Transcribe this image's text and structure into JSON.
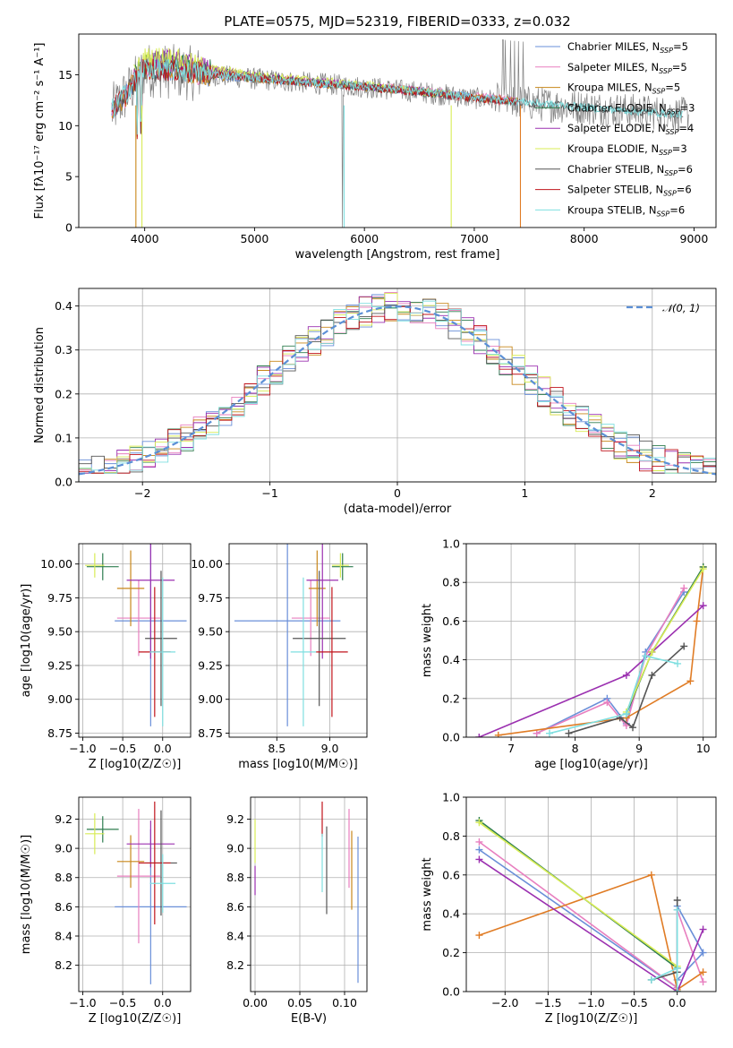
{
  "colors": {
    "Chabrier MILES": "#6a8fd8",
    "Salpeter MILES": "#e87fbf",
    "Kroupa MILES": "#c8871a",
    "Chabrier ELODIE": "#2e7d4f",
    "Salpeter ELODIE": "#9b30b0",
    "Kroupa ELODIE": "#d8ec55",
    "Chabrier STELIB": "#555555",
    "Salpeter STELIB": "#c0141c",
    "Kroupa STELIB": "#7fdfe0",
    "Salpeter STELIB alt": "#e07c25",
    "normal": "#5b8fd6",
    "data_spectrum": "#808080"
  },
  "chart_data": [
    {
      "id": "spectrum",
      "type": "line",
      "title": "PLATE=0575, MJD=52319, FIBERID=0333, z=0.032",
      "xlabel": "wavelength [Angstrom, rest frame]",
      "ylabel": "Flux [fλ10⁻¹⁷ erg cm⁻² s⁻¹ A⁻¹]",
      "xlim": [
        3400,
        9200
      ],
      "ylim": [
        0,
        19
      ],
      "xticks": [
        4000,
        5000,
        6000,
        7000,
        8000,
        9000
      ],
      "yticks": [
        0,
        5,
        10,
        15
      ],
      "grid": false,
      "legend_position": "top-right",
      "legend": [
        {
          "name": "Chabrier MILES",
          "sub": "SSP",
          "n": "5"
        },
        {
          "name": "Salpeter MILES",
          "sub": "SSP",
          "n": "5"
        },
        {
          "name": "Kroupa MILES",
          "sub": "SSP",
          "n": "5"
        },
        {
          "name": "Chabrier ELODIE",
          "sub": "SSP",
          "n": "3"
        },
        {
          "name": "Salpeter ELODIE",
          "sub": "SSP",
          "n": "4"
        },
        {
          "name": "Kroupa ELODIE",
          "sub": "SSP",
          "n": "3"
        },
        {
          "name": "Chabrier STELIB",
          "sub": "SSP",
          "n": "6"
        },
        {
          "name": "Salpeter STELIB",
          "sub": "SSP",
          "n": "6"
        },
        {
          "name": "Kroupa STELIB",
          "sub": "SSP",
          "n": "6"
        }
      ],
      "series": [
        {
          "name": "Chabrier MILES",
          "x": [
            3700,
            3800,
            3900,
            4000,
            4200,
            4500,
            5000,
            5500,
            6000,
            6500,
            7000,
            7400
          ],
          "y": [
            11.5,
            12.2,
            14.5,
            15.8,
            15.6,
            15.0,
            14.6,
            14.2,
            13.9,
            13.4,
            12.8,
            12.4
          ]
        },
        {
          "name": "Salpeter MILES",
          "x": [
            3700,
            3800,
            3900,
            4000,
            4200,
            4500,
            5000,
            5500,
            6000,
            6500,
            7000,
            7400
          ],
          "y": [
            11.6,
            12.3,
            14.6,
            15.9,
            15.7,
            15.1,
            14.7,
            14.3,
            13.9,
            13.5,
            12.9,
            12.5
          ]
        },
        {
          "name": "Kroupa MILES",
          "x": [
            3700,
            3800,
            3900,
            4000,
            4200,
            4500,
            5000,
            5500,
            6000,
            6500,
            7000,
            7400
          ],
          "y": [
            11.5,
            12.1,
            14.4,
            15.7,
            15.6,
            15.0,
            14.6,
            14.2,
            13.8,
            13.4,
            12.8,
            12.4
          ]
        },
        {
          "name": "Chabrier ELODIE",
          "x": [
            3900,
            4000,
            4200,
            4500,
            5000,
            5500,
            6000,
            6500,
            6800
          ],
          "y": [
            14.8,
            16.0,
            16.3,
            15.6,
            14.8,
            14.3,
            13.8,
            13.3,
            12.9
          ]
        },
        {
          "name": "Salpeter ELODIE",
          "x": [
            3900,
            4000,
            4200,
            4500,
            5000,
            5500,
            6000,
            6500,
            6800
          ],
          "y": [
            14.9,
            16.2,
            16.5,
            15.7,
            14.9,
            14.4,
            13.9,
            13.4,
            13.0
          ]
        },
        {
          "name": "Kroupa ELODIE",
          "x": [
            3900,
            4000,
            4200,
            4500,
            5000,
            5500,
            6000,
            6500,
            6800
          ],
          "y": [
            15.0,
            16.6,
            16.8,
            15.8,
            15.0,
            14.5,
            14.0,
            13.4,
            13.0
          ]
        },
        {
          "name": "Chabrier STELIB",
          "x": [
            3700,
            3900,
            4000,
            4500,
            5000,
            5500,
            6000,
            6500,
            7000,
            7500,
            8000,
            8500,
            8900
          ],
          "y": [
            11.4,
            14.0,
            15.5,
            15.1,
            14.6,
            14.2,
            13.8,
            13.3,
            12.7,
            12.2,
            11.8,
            11.4,
            11.1
          ]
        },
        {
          "name": "Salpeter STELIB",
          "x": [
            3700,
            3900,
            4000,
            4500,
            5000,
            5500,
            6000,
            6500,
            7000,
            7400
          ],
          "y": [
            11.5,
            14.1,
            15.6,
            15.2,
            14.7,
            14.2,
            13.8,
            13.3,
            12.7,
            12.3
          ]
        },
        {
          "name": "Kroupa STELIB",
          "x": [
            3700,
            3900,
            4000,
            4500,
            5000,
            5500,
            6000,
            6500,
            7000,
            7500,
            8000,
            8500,
            8900
          ],
          "y": [
            11.5,
            14.2,
            15.7,
            15.2,
            14.7,
            14.2,
            13.9,
            13.4,
            12.8,
            12.3,
            11.8,
            11.4,
            11.1
          ]
        }
      ]
    },
    {
      "id": "residuals",
      "type": "line",
      "xlabel": "(data-model)/error",
      "ylabel": "Normed distribution",
      "xlim": [
        -2.5,
        2.5
      ],
      "ylim": [
        0,
        0.44
      ],
      "xticks": [
        -2,
        -1,
        0,
        1,
        2
      ],
      "yticks": [
        0.0,
        0.1,
        0.2,
        0.3,
        0.4
      ],
      "grid": true,
      "legend_position": "top-right",
      "legend": [
        {
          "name": "𝒩(0, 1)"
        }
      ],
      "bin_edges_range": [
        -2.5,
        2.5
      ],
      "bin_count": 50
    },
    {
      "id": "age-vs-z",
      "type": "scatter",
      "xlabel": "Z [log10(Z/Z☉)]",
      "ylabel": "age  [log10(age/yr)]",
      "xlim": [
        -1.05,
        0.35
      ],
      "ylim": [
        8.72,
        10.15
      ],
      "xticks": [
        -1.0,
        -0.5,
        0.0
      ],
      "yticks": [
        8.75,
        9.0,
        9.25,
        9.5,
        9.75,
        10.0
      ],
      "grid": true,
      "points": [
        {
          "series": "Chabrier MILES",
          "x": -0.15,
          "xerr": 0.45,
          "y": 9.58,
          "yerr": 0.78
        },
        {
          "series": "Salpeter MILES",
          "x": -0.3,
          "xerr": 0.27,
          "y": 9.6,
          "yerr": 0.28
        },
        {
          "series": "Kroupa MILES",
          "x": -0.4,
          "xerr": 0.17,
          "y": 9.82,
          "yerr": 0.28
        },
        {
          "series": "Chabrier ELODIE",
          "x": -0.75,
          "xerr": 0.2,
          "y": 9.98,
          "yerr": 0.1
        },
        {
          "series": "Salpeter ELODIE",
          "x": -0.15,
          "xerr": 0.3,
          "y": 9.88,
          "yerr": 0.58
        },
        {
          "series": "Kroupa ELODIE",
          "x": -0.85,
          "xerr": 0.12,
          "y": 9.99,
          "yerr": 0.09
        },
        {
          "series": "Chabrier STELIB",
          "x": -0.02,
          "xerr": 0.2,
          "y": 9.45,
          "yerr": 0.5
        },
        {
          "series": "Salpeter STELIB",
          "x": -0.1,
          "xerr": 0.2,
          "y": 9.35,
          "yerr": 0.48
        },
        {
          "series": "Kroupa STELIB",
          "x": 0.0,
          "xerr": 0.16,
          "y": 9.35,
          "yerr": 0.55
        }
      ]
    },
    {
      "id": "age-vs-mass",
      "type": "scatter",
      "xlabel": "mass [log10(M/M☉)]",
      "xlim": [
        8.05,
        9.35
      ],
      "ylim": [
        8.72,
        10.15
      ],
      "xticks": [
        8.5,
        9.0
      ],
      "yticks": [
        8.75,
        9.0,
        9.25,
        9.5,
        9.75,
        10.0
      ],
      "grid": true,
      "points": [
        {
          "series": "Chabrier MILES",
          "x": 8.6,
          "xerr": 0.5,
          "y": 9.58,
          "yerr": 0.78
        },
        {
          "series": "Salpeter MILES",
          "x": 8.82,
          "xerr": 0.18,
          "y": 9.6,
          "yerr": 0.28
        },
        {
          "series": "Kroupa MILES",
          "x": 8.88,
          "xerr": 0.08,
          "y": 9.82,
          "yerr": 0.28
        },
        {
          "series": "Chabrier ELODIE",
          "x": 9.12,
          "xerr": 0.1,
          "y": 9.98,
          "yerr": 0.1
        },
        {
          "series": "Salpeter ELODIE",
          "x": 8.93,
          "xerr": 0.15,
          "y": 9.88,
          "yerr": 0.58
        },
        {
          "series": "Kroupa ELODIE",
          "x": 9.1,
          "xerr": 0.08,
          "y": 9.99,
          "yerr": 0.09
        },
        {
          "series": "Chabrier STELIB",
          "x": 8.9,
          "xerr": 0.25,
          "y": 9.45,
          "yerr": 0.5
        },
        {
          "series": "Salpeter STELIB",
          "x": 9.02,
          "xerr": 0.15,
          "y": 9.35,
          "yerr": 0.48
        },
        {
          "series": "Kroupa STELIB",
          "x": 8.75,
          "xerr": 0.12,
          "y": 9.35,
          "yerr": 0.55
        }
      ]
    },
    {
      "id": "weight-vs-age",
      "type": "line",
      "xlabel": "age  [log10(age/yr)]",
      "ylabel": "mass weight",
      "xlim": [
        6.3,
        10.2
      ],
      "ylim": [
        0,
        1
      ],
      "xticks": [
        7,
        8,
        9,
        10
      ],
      "yticks": [
        0.0,
        0.2,
        0.4,
        0.6,
        0.8,
        1.0
      ],
      "grid": true,
      "series": [
        {
          "name": "Chabrier MILES",
          "x": [
            7.4,
            8.5,
            8.8,
            9.1,
            9.7
          ],
          "y": [
            0.02,
            0.2,
            0.07,
            0.44,
            0.75
          ]
        },
        {
          "name": "Salpeter MILES",
          "x": [
            7.4,
            8.5,
            8.8,
            9.1,
            9.7
          ],
          "y": [
            0.02,
            0.18,
            0.06,
            0.42,
            0.77
          ]
        },
        {
          "name": "Salpeter STELIB alt",
          "x": [
            6.8,
            8.8,
            9.8,
            9.9,
            10.0
          ],
          "y": [
            0.01,
            0.1,
            0.29,
            0.6,
            0.88
          ]
        },
        {
          "name": "Chabrier ELODIE",
          "x": [
            8.8,
            9.2,
            10.0
          ],
          "y": [
            0.12,
            0.44,
            0.88
          ]
        },
        {
          "name": "Salpeter ELODIE",
          "x": [
            6.5,
            8.8,
            9.2,
            10.0
          ],
          "y": [
            0.0,
            0.32,
            0.44,
            0.68
          ]
        },
        {
          "name": "Kroupa ELODIE",
          "x": [
            8.8,
            9.2,
            10.0
          ],
          "y": [
            0.13,
            0.44,
            0.87
          ]
        },
        {
          "name": "Chabrier STELIB",
          "x": [
            7.9,
            8.7,
            8.9,
            9.2,
            9.7
          ],
          "y": [
            0.02,
            0.1,
            0.05,
            0.32,
            0.47
          ]
        },
        {
          "name": "Kroupa STELIB",
          "x": [
            7.6,
            8.8,
            9.1,
            9.6
          ],
          "y": [
            0.02,
            0.12,
            0.42,
            0.38
          ]
        }
      ]
    },
    {
      "id": "mass-vs-z",
      "type": "scatter",
      "xlabel": "Z [log10(Z/Z☉)]",
      "ylabel": "mass [log10(M/M☉)]",
      "xlim": [
        -1.05,
        0.35
      ],
      "ylim": [
        8.02,
        9.35
      ],
      "xticks": [
        -1.0,
        -0.5,
        0.0
      ],
      "yticks": [
        8.2,
        8.4,
        8.6,
        8.8,
        9.0,
        9.2
      ],
      "grid": true,
      "points": [
        {
          "series": "Chabrier MILES",
          "x": -0.15,
          "xerr": 0.45,
          "y": 8.6,
          "yerr": 0.53
        },
        {
          "series": "Salpeter MILES",
          "x": -0.3,
          "xerr": 0.27,
          "y": 8.81,
          "yerr": 0.46
        },
        {
          "series": "Kroupa MILES",
          "x": -0.4,
          "xerr": 0.17,
          "y": 8.91,
          "yerr": 0.18
        },
        {
          "series": "Chabrier ELODIE",
          "x": -0.75,
          "xerr": 0.2,
          "y": 9.13,
          "yerr": 0.09
        },
        {
          "series": "Salpeter ELODIE",
          "x": -0.15,
          "xerr": 0.3,
          "y": 9.03,
          "yerr": 0.16
        },
        {
          "series": "Kroupa ELODIE",
          "x": -0.85,
          "xerr": 0.12,
          "y": 9.1,
          "yerr": 0.14
        },
        {
          "series": "Chabrier STELIB",
          "x": -0.02,
          "xerr": 0.2,
          "y": 8.9,
          "yerr": 0.36
        },
        {
          "series": "Salpeter STELIB",
          "x": -0.1,
          "xerr": 0.2,
          "y": 8.9,
          "yerr": 0.42
        },
        {
          "series": "Kroupa STELIB",
          "x": 0.0,
          "xerr": 0.16,
          "y": 8.76,
          "yerr": 0.2
        }
      ]
    },
    {
      "id": "mass-vs-ebv",
      "type": "scatter",
      "xlabel": "E(B-V)",
      "xlim": [
        -0.005,
        0.125
      ],
      "ylim": [
        8.02,
        9.35
      ],
      "xticks": [
        0.0,
        0.05,
        0.1
      ],
      "yticks": [
        8.2,
        8.4,
        8.6,
        8.8,
        9.0,
        9.2
      ],
      "grid": true,
      "points": [
        {
          "series": "Chabrier MILES",
          "x": 0.115,
          "y": 8.58,
          "yerr": 0.5
        },
        {
          "series": "Salpeter MILES",
          "x": 0.105,
          "y": 9.0,
          "yerr": 0.27
        },
        {
          "series": "Kroupa MILES",
          "x": 0.108,
          "y": 8.85,
          "yerr": 0.27
        },
        {
          "series": "Salpeter ELODIE",
          "x": 0.0,
          "y": 8.78,
          "yerr": 0.1
        },
        {
          "series": "Kroupa ELODIE",
          "x": 0.0,
          "y": 9.05,
          "yerr": 0.15
        },
        {
          "series": "Chabrier STELIB",
          "x": 0.08,
          "y": 8.85,
          "yerr": 0.3
        },
        {
          "series": "Salpeter STELIB",
          "x": 0.075,
          "y": 9.2,
          "yerr": 0.12
        },
        {
          "series": "Kroupa STELIB",
          "x": 0.075,
          "y": 8.9,
          "yerr": 0.2
        }
      ]
    },
    {
      "id": "weight-vs-z",
      "type": "line",
      "xlabel": "Z [log10(Z/Z☉)]",
      "ylabel": "mass weight",
      "xlim": [
        -2.45,
        0.45
      ],
      "ylim": [
        0,
        1
      ],
      "xticks": [
        -2.0,
        -1.5,
        -1.0,
        -0.5,
        0.0
      ],
      "yticks": [
        0.0,
        0.2,
        0.4,
        0.6,
        0.8,
        1.0
      ],
      "grid": true,
      "series": [
        {
          "name": "Chabrier MILES",
          "x": [
            -2.3,
            0.0,
            0.0,
            0.3,
            0.0
          ],
          "y": [
            0.73,
            0.02,
            0.44,
            0.2,
            0.06
          ]
        },
        {
          "name": "Salpeter MILES",
          "x": [
            -2.3,
            0.0,
            0.0,
            0.3
          ],
          "y": [
            0.77,
            0.02,
            0.42,
            0.05
          ]
        },
        {
          "name": "Salpeter STELIB alt",
          "x": [
            -2.3,
            -0.3,
            0.0,
            0.3
          ],
          "y": [
            0.29,
            0.6,
            0.01,
            0.1
          ]
        },
        {
          "name": "Chabrier ELODIE",
          "x": [
            -2.3,
            0.0,
            0.0
          ],
          "y": [
            0.88,
            0.12,
            0.0
          ]
        },
        {
          "name": "Salpeter ELODIE",
          "x": [
            -2.3,
            0.0,
            0.3
          ],
          "y": [
            0.68,
            0.0,
            0.32
          ]
        },
        {
          "name": "Kroupa ELODIE",
          "x": [
            -2.3,
            0.0,
            0.0
          ],
          "y": [
            0.87,
            0.13,
            0.0
          ]
        },
        {
          "name": "Chabrier STELIB",
          "x": [
            -0.3,
            0.0,
            0.0,
            0.0
          ],
          "y": [
            0.06,
            0.1,
            0.47,
            0.0
          ]
        },
        {
          "name": "Kroupa STELIB",
          "x": [
            -0.3,
            0.0,
            0.0,
            0.0
          ],
          "y": [
            0.06,
            0.12,
            0.42,
            0.0
          ]
        }
      ]
    }
  ]
}
